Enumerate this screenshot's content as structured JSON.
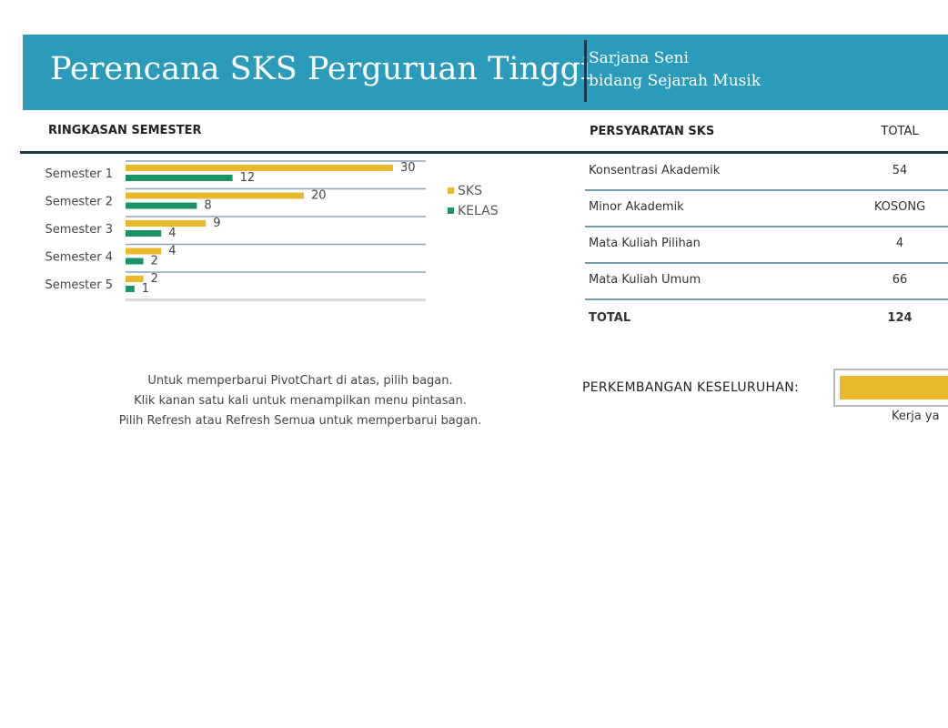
{
  "header": {
    "title": "Perencana SKS Perguruan Tinggi",
    "degree_line1": "Sarjana Seni",
    "degree_line2": "bidang Sejarah Musik"
  },
  "summary": {
    "heading": "RINGKASAN SEMESTER",
    "notes": [
      "Untuk memperbarui PivotChart di atas, pilih bagan.",
      "Klik kanan satu kali untuk menampilkan menu pintasan.",
      "Pilih Refresh atau Refresh Semua untuk memperbarui bagan."
    ]
  },
  "chart_data": {
    "type": "bar",
    "orientation": "horizontal",
    "categories": [
      "Semester 1",
      "Semester 2",
      "Semester 3",
      "Semester 4",
      "Semester 5"
    ],
    "series": [
      {
        "name": "SKS",
        "values": [
          30,
          20,
          9,
          4,
          2
        ],
        "color": "#e8b92c"
      },
      {
        "name": "KELAS",
        "values": [
          12,
          8,
          4,
          2,
          1
        ],
        "color": "#1a9367"
      }
    ],
    "xlim": [
      0,
      32
    ],
    "legend": "right",
    "data_labels": true
  },
  "requirements": {
    "heading": "PERSYARATAN SKS",
    "total_col": "TOTAL",
    "rows": [
      {
        "label": "Konsentrasi Akademik",
        "value": "54"
      },
      {
        "label": "Minor Akademik",
        "value": "KOSONG"
      },
      {
        "label": "Mata Kuliah Pilihan",
        "value": "4"
      },
      {
        "label": "Mata Kuliah Umum",
        "value": "66"
      }
    ],
    "total_label": "TOTAL",
    "total_value": "124"
  },
  "progress": {
    "label": "PERKEMBANGAN KESELURUHAN:",
    "caption": "Kerja ya",
    "color": "#e8b92c"
  }
}
